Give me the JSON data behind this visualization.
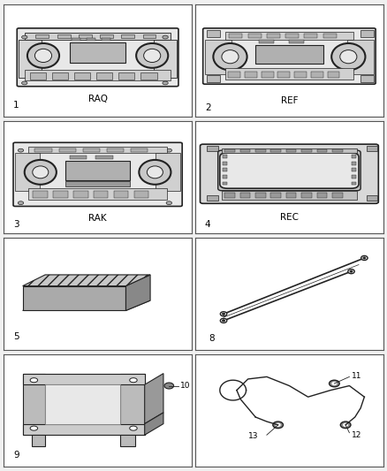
{
  "background_color": "#f0f0f0",
  "cell_bg": "#ffffff",
  "line_color": "#222222",
  "fig_width": 4.38,
  "fig_height": 5.33,
  "dpi": 100,
  "cells": [
    {
      "row": 0,
      "col": 0,
      "num": "1",
      "label": "RAQ",
      "type": "radio_raq"
    },
    {
      "row": 0,
      "col": 1,
      "num": "2",
      "label": "REF",
      "type": "radio_ref"
    },
    {
      "row": 1,
      "col": 0,
      "num": "3",
      "label": "RAK",
      "type": "radio_rak"
    },
    {
      "row": 1,
      "col": 1,
      "num": "4",
      "label": "REC",
      "type": "radio_rec"
    },
    {
      "row": 2,
      "col": 0,
      "num": "5",
      "label": "",
      "type": "amplifier"
    },
    {
      "row": 2,
      "col": 1,
      "num": "8",
      "label": "",
      "type": "wires"
    },
    {
      "row": 3,
      "col": 0,
      "num": "9",
      "label": "",
      "type": "bracket"
    },
    {
      "row": 3,
      "col": 1,
      "num": "11",
      "label": "",
      "type": "connector"
    }
  ]
}
